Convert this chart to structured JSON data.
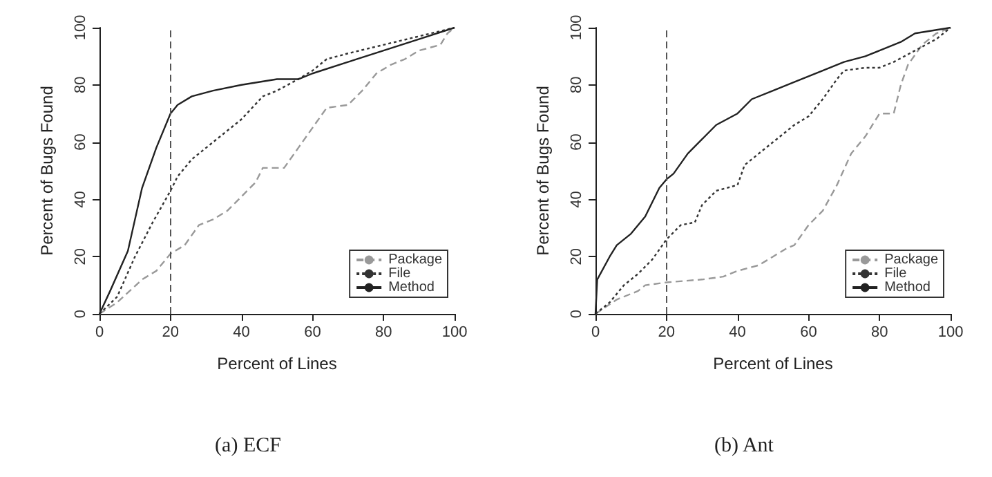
{
  "chart_data": [
    {
      "type": "line",
      "title": "(a) ECF",
      "xlabel": "Percent of Lines",
      "ylabel": "Percent of Bugs Found",
      "xlim": [
        0,
        100
      ],
      "ylim": [
        0,
        100
      ],
      "xticks": [
        0,
        20,
        40,
        60,
        80,
        100
      ],
      "yticks": [
        0,
        20,
        40,
        60,
        80,
        100
      ],
      "legend": "bottom right",
      "ref_lines": [
        {
          "axis": "x",
          "value": 20,
          "label": null,
          "color": "#555555",
          "line_style": "dashed"
        }
      ],
      "series": [
        {
          "name": "Package",
          "color": "#999999",
          "line_style": "dashed",
          "x": [
            0,
            5,
            12,
            16,
            20,
            24,
            28,
            32,
            36,
            40,
            44,
            46,
            52,
            56,
            60,
            64,
            70,
            74,
            78,
            82,
            86,
            90,
            96,
            98,
            100
          ],
          "values": [
            0,
            4,
            12,
            15,
            21,
            24,
            31,
            33,
            36,
            41,
            46,
            51,
            51,
            58,
            65,
            72,
            73,
            78,
            84,
            87,
            89,
            92,
            94,
            98,
            100
          ]
        },
        {
          "name": "File",
          "color": "#333333",
          "line_style": "dotted",
          "x": [
            0,
            5,
            10,
            15,
            20,
            22,
            26,
            30,
            36,
            40,
            46,
            50,
            56,
            60,
            64,
            70,
            80,
            90,
            100
          ],
          "values": [
            0,
            6,
            20,
            32,
            43,
            48,
            54,
            58,
            64,
            68,
            76,
            78,
            82,
            85,
            89,
            91,
            94,
            97,
            100
          ]
        },
        {
          "name": "Method",
          "color": "#222222",
          "line_style": "solid",
          "x": [
            0,
            3,
            8,
            12,
            16,
            20,
            22,
            26,
            32,
            40,
            50,
            56,
            60,
            70,
            80,
            90,
            100
          ],
          "values": [
            0,
            8,
            22,
            44,
            58,
            70,
            73,
            76,
            78,
            80,
            82,
            82,
            84,
            88,
            92,
            96,
            100
          ]
        }
      ]
    },
    {
      "type": "line",
      "title": "(b) Ant",
      "xlabel": "Percent of Lines",
      "ylabel": "Percent of Bugs Found",
      "xlim": [
        0,
        100
      ],
      "ylim": [
        0,
        100
      ],
      "xticks": [
        0,
        20,
        40,
        60,
        80,
        100
      ],
      "yticks": [
        0,
        20,
        40,
        60,
        80,
        100
      ],
      "legend": "bottom right",
      "ref_lines": [
        {
          "axis": "x",
          "value": 20,
          "label": null,
          "color": "#555555",
          "line_style": "dashed"
        }
      ],
      "series": [
        {
          "name": "Package",
          "color": "#999999",
          "line_style": "dashed",
          "x": [
            0,
            6,
            12,
            14,
            20,
            30,
            36,
            40,
            46,
            50,
            54,
            56,
            60,
            64,
            68,
            72,
            76,
            80,
            84,
            86,
            88,
            92,
            96,
            100
          ],
          "values": [
            0,
            5,
            8,
            10,
            11,
            12,
            13,
            15,
            17,
            20,
            23,
            24,
            31,
            36,
            45,
            56,
            62,
            70,
            70,
            80,
            87,
            94,
            98,
            100
          ]
        },
        {
          "name": "File",
          "color": "#333333",
          "line_style": "dotted",
          "x": [
            0,
            4,
            8,
            12,
            16,
            20,
            24,
            28,
            30,
            34,
            40,
            42,
            46,
            50,
            56,
            60,
            64,
            68,
            70,
            76,
            80,
            84,
            90,
            96,
            100
          ],
          "values": [
            0,
            4,
            10,
            14,
            19,
            26,
            31,
            32,
            38,
            43,
            45,
            52,
            56,
            60,
            66,
            69,
            75,
            82,
            85,
            86,
            86,
            88,
            92,
            96,
            100
          ]
        },
        {
          "name": "Method",
          "color": "#222222",
          "line_style": "solid",
          "x": [
            0,
            0.5,
            4,
            6,
            10,
            14,
            18,
            20,
            22,
            26,
            30,
            34,
            40,
            44,
            50,
            56,
            60,
            64,
            70,
            76,
            80,
            86,
            90,
            100
          ],
          "values": [
            0,
            12,
            20,
            24,
            28,
            34,
            44,
            47,
            49,
            56,
            61,
            66,
            70,
            75,
            78,
            81,
            83,
            85,
            88,
            90,
            92,
            95,
            98,
            100
          ]
        }
      ]
    }
  ]
}
